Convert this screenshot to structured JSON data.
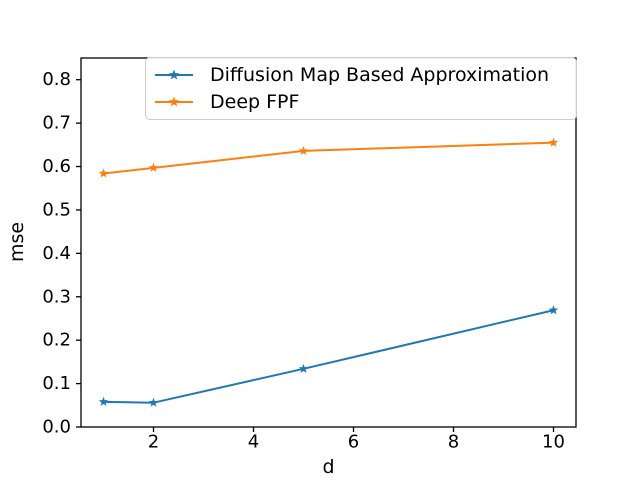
{
  "chart_data": {
    "type": "line",
    "title": "",
    "xlabel": "d",
    "ylabel": "mse",
    "x": [
      1,
      2,
      5,
      10
    ],
    "series": [
      {
        "name": "Diffusion Map Based Approximation",
        "color": "#1f77b4",
        "marker": "star",
        "values": [
          0.058,
          0.056,
          0.134,
          0.269
        ]
      },
      {
        "name": "Deep FPF",
        "color": "#ff7f0e",
        "marker": "star",
        "values": [
          0.584,
          0.597,
          0.636,
          0.655
        ]
      }
    ],
    "xlim": [
      0.55,
      10.45
    ],
    "ylim": [
      0,
      0.85
    ],
    "xticks": [
      2,
      4,
      6,
      8,
      10
    ],
    "xtick_labels": [
      "2",
      "4",
      "6",
      "8",
      "10"
    ],
    "yticks": [
      0.0,
      0.1,
      0.2,
      0.3,
      0.4,
      0.5,
      0.6,
      0.7,
      0.8
    ],
    "ytick_labels": [
      "0.0",
      "0.1",
      "0.2",
      "0.3",
      "0.4",
      "0.5",
      "0.6",
      "0.7",
      "0.8"
    ],
    "grid": false,
    "legend": {
      "position": "upper right",
      "border_color": "#cccccc",
      "background": "#ffffff"
    },
    "axis_color": "#000000",
    "background": "#ffffff"
  }
}
